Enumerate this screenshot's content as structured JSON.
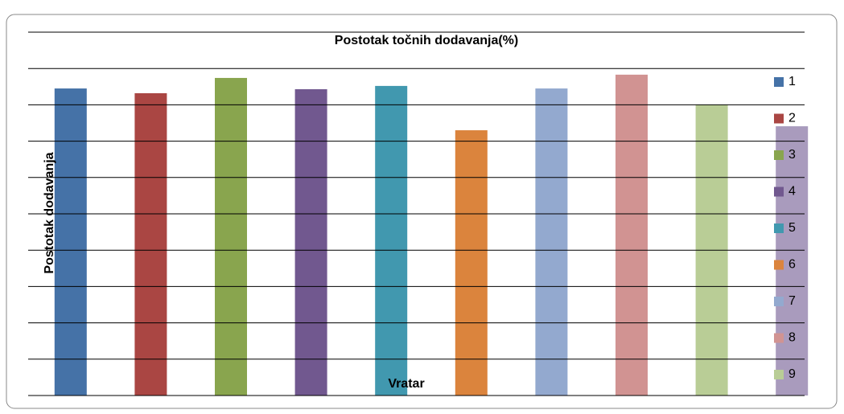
{
  "chart_data": {
    "type": "bar",
    "title": "Postotak točnih dodavanja(%)",
    "x_label": "Vratar",
    "y_label": "Postotak dodavanja",
    "categories": [
      "1",
      "2",
      "3",
      "4",
      "5",
      "6",
      "7",
      "8",
      "9",
      null
    ],
    "values": [
      84.5,
      83.2,
      87.4,
      84.3,
      85.2,
      73.0,
      84.5,
      88.3,
      80.1,
      74.1
    ],
    "colors": [
      "#4572a7",
      "#aa4643",
      "#89a54e",
      "#71588f",
      "#4198af",
      "#db843d",
      "#93a9cf",
      "#d19392",
      "#b9cd96",
      "#a99bbd"
    ],
    "ylim": [
      0,
      100
    ],
    "yticks": [
      0,
      10,
      20,
      30,
      40,
      50,
      60,
      70,
      80,
      90,
      100
    ],
    "grid": true,
    "legend": "right"
  }
}
